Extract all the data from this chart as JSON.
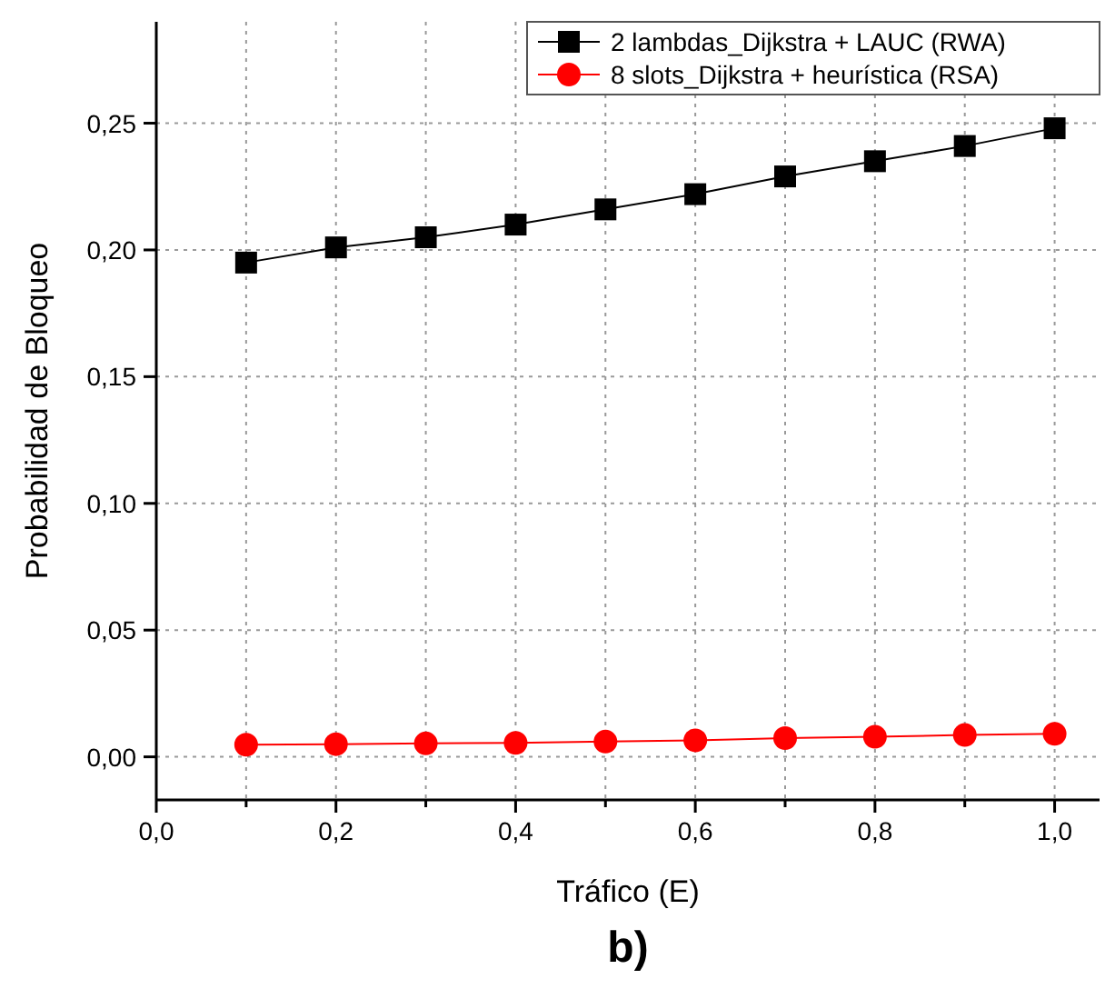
{
  "chart_data": {
    "type": "line",
    "xlabel": "Tráfico (E)",
    "ylabel": "Probabilidad de Bloqueo",
    "annotations": [
      "b)"
    ],
    "x": [
      0.1,
      0.2,
      0.3,
      0.4,
      0.5,
      0.6,
      0.7,
      0.8,
      0.9,
      1.0
    ],
    "series": [
      {
        "name": "2 lambdas_Dijkstra + LAUC (RWA)",
        "color": "#000000",
        "marker": "square",
        "values": [
          0.195,
          0.201,
          0.205,
          0.21,
          0.216,
          0.222,
          0.229,
          0.235,
          0.241,
          0.248
        ]
      },
      {
        "name": "8 slots_Dijkstra + heurística (RSA)",
        "color": "#ff0000",
        "marker": "circle",
        "values": [
          0.0048,
          0.005,
          0.0053,
          0.0055,
          0.006,
          0.0065,
          0.0074,
          0.0079,
          0.0086,
          0.0091
        ]
      }
    ],
    "xlim": [
      0,
      1.05
    ],
    "ylim": [
      -0.017,
      0.29
    ],
    "xticks": [
      {
        "value": 0,
        "label": "0,0"
      },
      {
        "value": 0.1,
        "label": null
      },
      {
        "value": 0.2,
        "label": "0,2"
      },
      {
        "value": 0.3,
        "label": null
      },
      {
        "value": 0.4,
        "label": "0,4"
      },
      {
        "value": 0.5,
        "label": null
      },
      {
        "value": 0.6,
        "label": "0,6"
      },
      {
        "value": 0.7,
        "label": null
      },
      {
        "value": 0.8,
        "label": "0,8"
      },
      {
        "value": 0.9,
        "label": null
      },
      {
        "value": 1.0,
        "label": "1,0"
      }
    ],
    "yticks": [
      {
        "value": 0,
        "label": "0,00"
      },
      {
        "value": 0.05,
        "label": "0,05"
      },
      {
        "value": 0.1,
        "label": "0,10"
      },
      {
        "value": 0.15,
        "label": "0,15"
      },
      {
        "value": 0.2,
        "label": "0,20"
      },
      {
        "value": 0.25,
        "label": "0,25"
      }
    ],
    "grid": true,
    "legend": "top right",
    "line_style": "solid"
  }
}
